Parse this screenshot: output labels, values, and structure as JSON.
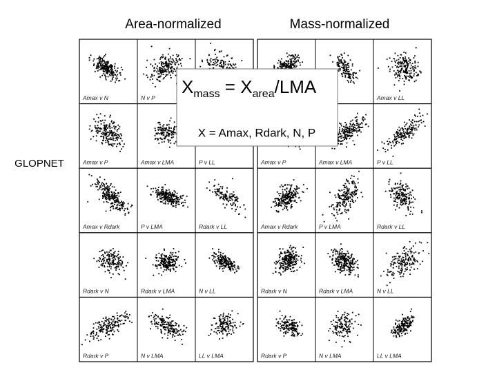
{
  "titles": [
    "Area-normalized",
    "Mass-normalized"
  ],
  "side_label": "GLOPNET",
  "grids": [
    {
      "labels": [
        [
          "Amax v N",
          "N v P",
          null
        ],
        [
          "Amax v P",
          "Amax v LMA",
          "P v LL"
        ],
        [
          "Amax v Rdark",
          "P v LMA",
          "Rdark v LL"
        ],
        [
          "Rdark v N",
          "Rdark v LMA",
          "N v LL"
        ],
        [
          "Rdark v P",
          "N v LMA",
          "LL v LMA"
        ]
      ]
    },
    {
      "labels": [
        [
          null,
          null,
          "Amax v LL"
        ],
        [
          "Amax v P",
          "Amax v LMA",
          "P v LL"
        ],
        [
          "Amax v Rdark",
          "P v LMA",
          "Rdark v LL"
        ],
        [
          "Rdark v N",
          "Rdark v LMA",
          "N v LL"
        ],
        [
          "Rdark v P",
          "N v LMA",
          "LL v LMA"
        ]
      ]
    }
  ],
  "formula": [
    "X",
    "mass",
    " = X",
    "area",
    "/LMA"
  ],
  "formula_note": "X = Amax, Rdark, N, P"
}
